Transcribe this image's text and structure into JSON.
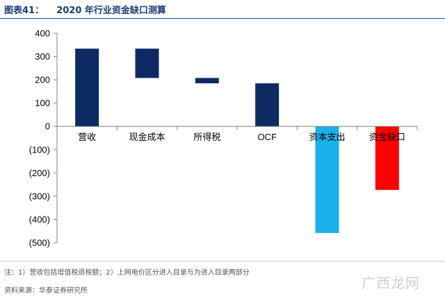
{
  "title": "图表41：    2020 年行业资金缺口测算",
  "note": "注：1）营收包括增值税退税额；2）上网电价区分进入目录与为进入目录两部分",
  "source": "资料来源：华泰证券研究所",
  "watermark": "广西龙网",
  "colors": {
    "navy": "#0d2a63",
    "light_blue": "#1ab0ec",
    "red": "#ff0000",
    "axis": "#7f7f7f",
    "title": "#1a3b78"
  },
  "chart_data": {
    "type": "bar",
    "subtype": "waterfall",
    "categories": [
      "营收",
      "现金成本",
      "所得税",
      "OCF",
      "资本支出",
      "资金缺口"
    ],
    "bars": [
      {
        "category": "营收",
        "start": 0,
        "end": 334,
        "color": "#0d2a63"
      },
      {
        "category": "现金成本",
        "start": 334,
        "end": 208,
        "color": "#0d2a63"
      },
      {
        "category": "所得税",
        "start": 208,
        "end": 185,
        "color": "#0d2a63"
      },
      {
        "category": "OCF",
        "start": 0,
        "end": 185,
        "color": "#0d2a63"
      },
      {
        "category": "资本支出",
        "start": 0,
        "end": -458,
        "color": "#1ab0ec"
      },
      {
        "category": "资金缺口",
        "start": 0,
        "end": -273,
        "color": "#ff0000"
      }
    ],
    "ylim": [
      -500,
      400
    ],
    "yticks": [
      400,
      300,
      200,
      100,
      0,
      -100,
      -200,
      -300,
      -400,
      -500
    ],
    "ytick_labels": [
      "400",
      "300",
      "200",
      "100",
      "0",
      "(100)",
      "(200)",
      "(300)",
      "(400)",
      "(500)"
    ],
    "grid": false,
    "legend": "none"
  }
}
